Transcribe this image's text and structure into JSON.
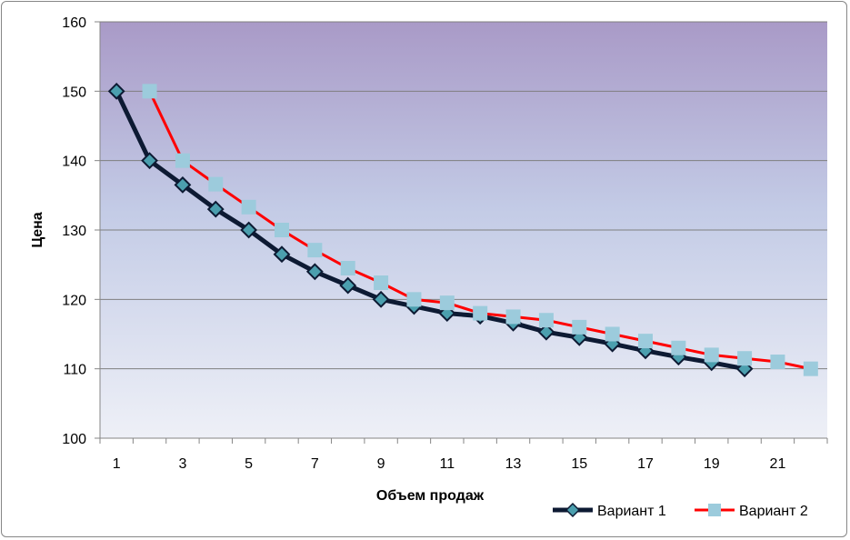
{
  "chart_data": {
    "type": "line",
    "title": "",
    "xlabel": "Объем продаж",
    "ylabel": "Цена",
    "ylim": [
      100,
      160
    ],
    "yticks": [
      100,
      110,
      120,
      130,
      140,
      150,
      160
    ],
    "xlim": [
      1,
      22
    ],
    "xticks": [
      1,
      3,
      5,
      7,
      9,
      11,
      13,
      15,
      17,
      19,
      21
    ],
    "grid": true,
    "legend": "bottom-right",
    "colors": {
      "plot_top": "#a99ac7",
      "plot_bottom": "#eef0f7",
      "series1_line": "#0d1a33",
      "series1_marker": "#4b9fae",
      "series2_line": "#ff0000",
      "series2_marker": "#9ccbdc"
    },
    "series": [
      {
        "name": "Вариант 1",
        "marker": "diamond",
        "x": [
          1,
          2,
          3,
          4,
          5,
          6,
          7,
          8,
          9,
          10,
          11,
          12,
          13,
          14,
          15,
          16,
          17,
          18,
          19,
          20
        ],
        "values": [
          150,
          140,
          136.5,
          133,
          130,
          126.5,
          124,
          122,
          120,
          119,
          118,
          117.6,
          116.6,
          115.3,
          114.5,
          113.6,
          112.6,
          111.7,
          110.9,
          110
        ]
      },
      {
        "name": "Вариант 2",
        "marker": "square",
        "x": [
          2,
          3,
          4,
          5,
          6,
          7,
          8,
          9,
          10,
          11,
          12,
          13,
          14,
          15,
          16,
          17,
          18,
          19,
          20,
          21,
          22
        ],
        "values": [
          150,
          140,
          136.6,
          133.3,
          130,
          127.1,
          124.5,
          122.4,
          120,
          119.5,
          118,
          117.5,
          117,
          116,
          115,
          114,
          113,
          112,
          111.5,
          111,
          110
        ]
      }
    ]
  }
}
